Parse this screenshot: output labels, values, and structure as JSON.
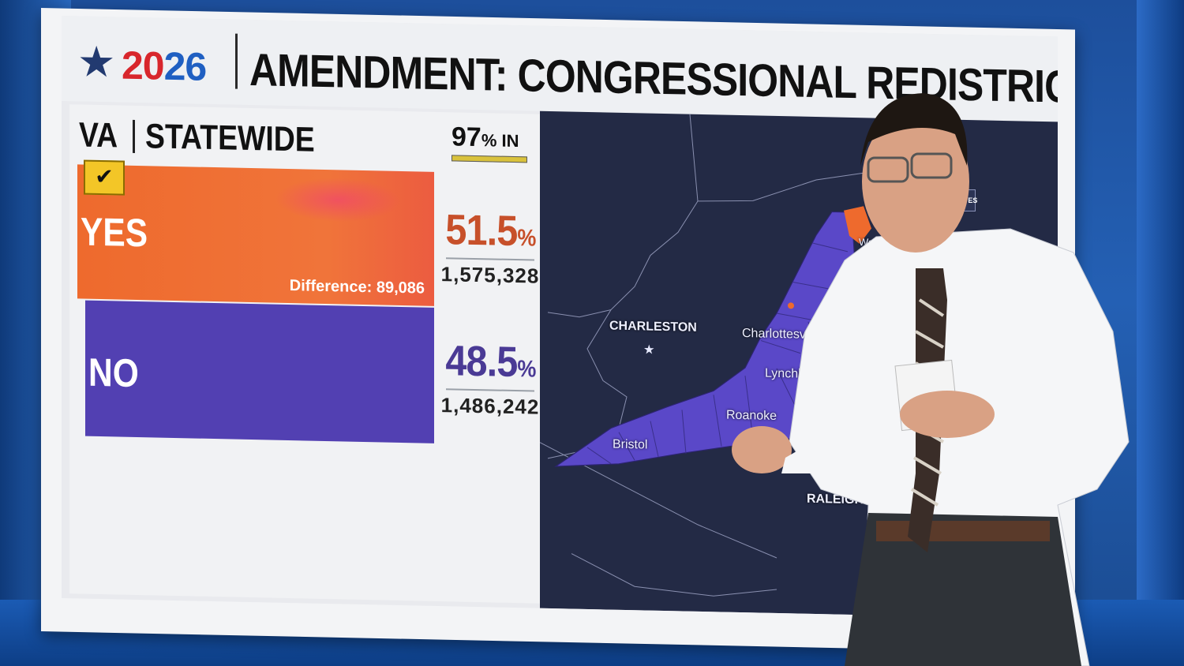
{
  "header": {
    "logo_year_red": "20",
    "logo_year_blue": "26",
    "title": "AMENDMENT: CONGRESSIONAL REDISTRICTING"
  },
  "panel": {
    "state": "VA",
    "scope": "STATEWIDE",
    "pct_in_value": "97",
    "pct_in_suffix": "% IN",
    "pct_in_fraction": 0.97
  },
  "results": [
    {
      "label": "YES",
      "percent": "51.5",
      "percent_suffix": "%",
      "votes": "1,575,328",
      "winner": true,
      "color": "#ee6a2d"
    },
    {
      "label": "NO",
      "percent": "48.5",
      "percent_suffix": "%",
      "votes": "1,486,242",
      "winner": false,
      "color": "#5240b2"
    }
  ],
  "difference_label": "Difference: 89,086",
  "map": {
    "cities": [
      "CHARLESTON",
      "Charlottesvil",
      "Lynchb",
      "Roanoke",
      "Bristol",
      "RALEIGH",
      "Wash"
    ],
    "county_color": "#5a48c8",
    "background": "#232a45"
  },
  "side_tools": {
    "initiatives_label": "INITIATIVES",
    "year_label": "2026"
  },
  "icons": [
    "star-icon",
    "check-icon",
    "pen-icon",
    "peacock-icon"
  ]
}
